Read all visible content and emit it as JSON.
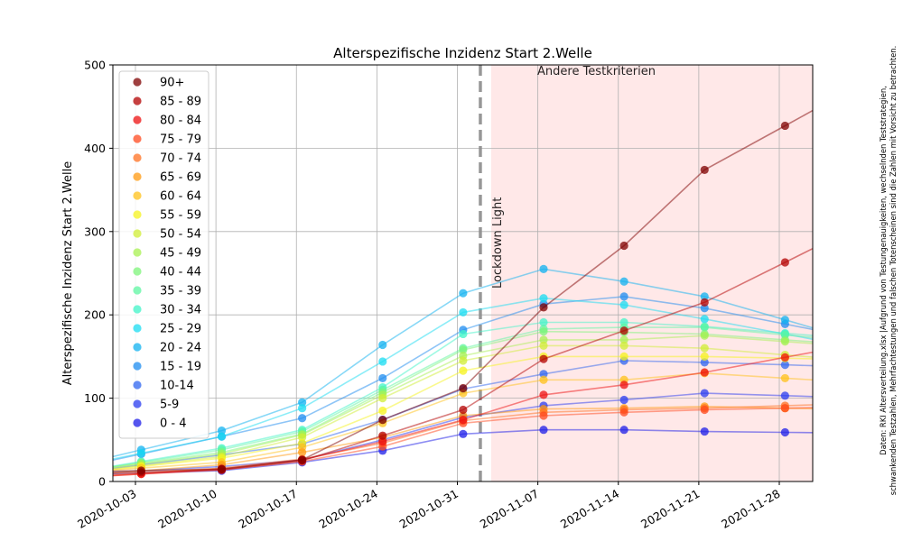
{
  "chart_data": {
    "type": "line",
    "title": "Alterspezifische Inzidenz Start 2.Welle",
    "xlabel": "",
    "ylabel": "Alterspezifische Inzidenz Start 2.Welle",
    "ylim": [
      0,
      500
    ],
    "yticks": [
      0,
      100,
      200,
      300,
      400,
      500
    ],
    "x_dates": [
      "2020-09-30",
      "2020-10-07",
      "2020-10-14",
      "2020-10-21",
      "2020-10-28",
      "2020-11-04",
      "2020-11-11",
      "2020-11-18",
      "2020-11-25"
    ],
    "xticks": [
      "2020-10-03",
      "2020-10-10",
      "2020-10-17",
      "2020-10-24",
      "2020-10-31",
      "2020-11-07",
      "2020-11-14",
      "2020-11-21",
      "2020-11-28"
    ],
    "lockdown_date": "2020-11-02",
    "lockdown_label": "Lockdown Light",
    "shaded_region_label": "Andere Testkriterien",
    "shaded_region_start": "2020-11-02",
    "legend_position": "upper left",
    "grid": true,
    "side_note": [
      "Daten: RKI Altersverteilung.xlsx |Aufgrund von Testungenauigkeiten, wechselnden Teststrategien,",
      "schwankenden Testzahlen, Mehrfachtestungen und falschen Totenscheinen sind die Zahlen mit Vorsicht zu betrachten."
    ],
    "series": [
      {
        "name": "90+",
        "color": "#7f0000",
        "values": [
          13,
          15,
          26,
          74,
          112,
          209,
          283,
          374,
          427
        ]
      },
      {
        "name": "85 - 89",
        "color": "#b30000",
        "values": [
          11,
          14,
          25,
          55,
          86,
          147,
          181,
          215,
          263
        ]
      },
      {
        "name": "80 - 84",
        "color": "#ee1010",
        "values": [
          9,
          15,
          26,
          48,
          74,
          104,
          116,
          131,
          149
        ]
      },
      {
        "name": "75 - 79",
        "color": "#ff4a1f",
        "values": [
          9,
          14,
          24,
          42,
          70,
          79,
          83,
          86,
          88
        ]
      },
      {
        "name": "70 - 74",
        "color": "#ff7020",
        "values": [
          10,
          16,
          27,
          46,
          73,
          83,
          86,
          88,
          91
        ]
      },
      {
        "name": "65 - 69",
        "color": "#ff9a10",
        "values": [
          13,
          20,
          35,
          53,
          79,
          87,
          88,
          90,
          88
        ]
      },
      {
        "name": "60 - 64",
        "color": "#ffc21a",
        "values": [
          16,
          23,
          41,
          70,
          106,
          122,
          122,
          130,
          124
        ]
      },
      {
        "name": "55 - 59",
        "color": "#f6f31e",
        "values": [
          18,
          28,
          46,
          85,
          133,
          150,
          150,
          150,
          148
        ]
      },
      {
        "name": "50 - 54",
        "color": "#d0ee36",
        "values": [
          19,
          30,
          53,
          100,
          145,
          163,
          163,
          160,
          152
        ]
      },
      {
        "name": "45 - 49",
        "color": "#a8f052",
        "values": [
          21,
          33,
          56,
          104,
          151,
          170,
          170,
          175,
          168
        ]
      },
      {
        "name": "40 - 44",
        "color": "#7ef47a",
        "values": [
          22,
          35,
          57,
          107,
          158,
          180,
          179,
          177,
          170
        ]
      },
      {
        "name": "35 - 39",
        "color": "#5ef6a2",
        "values": [
          23,
          38,
          60,
          110,
          160,
          183,
          185,
          185,
          176
        ]
      },
      {
        "name": "30 - 34",
        "color": "#40f4c8",
        "values": [
          24,
          40,
          62,
          113,
          177,
          191,
          191,
          186,
          178
        ]
      },
      {
        "name": "25 - 29",
        "color": "#1adcf2",
        "values": [
          34,
          54,
          88,
          144,
          203,
          220,
          212,
          195,
          177
        ]
      },
      {
        "name": "20 - 24",
        "color": "#10b2f0",
        "values": [
          38,
          61,
          95,
          164,
          226,
          255,
          240,
          222,
          194
        ]
      },
      {
        "name": "15 - 19",
        "color": "#1e8cf0",
        "values": [
          33,
          54,
          76,
          124,
          182,
          213,
          222,
          208,
          189
        ]
      },
      {
        "name": "10-14",
        "color": "#2f66f0",
        "values": [
          20,
          32,
          45,
          74,
          111,
          129,
          145,
          143,
          140
        ]
      },
      {
        "name": "5-9",
        "color": "#2a3cf0",
        "values": [
          13,
          18,
          26,
          50,
          77,
          91,
          98,
          106,
          103
        ]
      },
      {
        "name": "0 - 4",
        "color": "#1c1ce8",
        "values": [
          10,
          13,
          23,
          37,
          57,
          62,
          62,
          60,
          59
        ]
      }
    ]
  }
}
